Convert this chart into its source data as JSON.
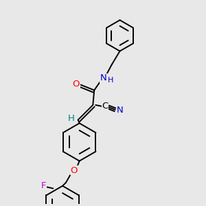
{
  "bg_color": "#e8e8e8",
  "bond_color": "#000000",
  "bond_width": 1.4,
  "atom_colors": {
    "O": "#ff0000",
    "N": "#0000cc",
    "F": "#cc00cc",
    "H": "#008080",
    "C": "#000000"
  }
}
